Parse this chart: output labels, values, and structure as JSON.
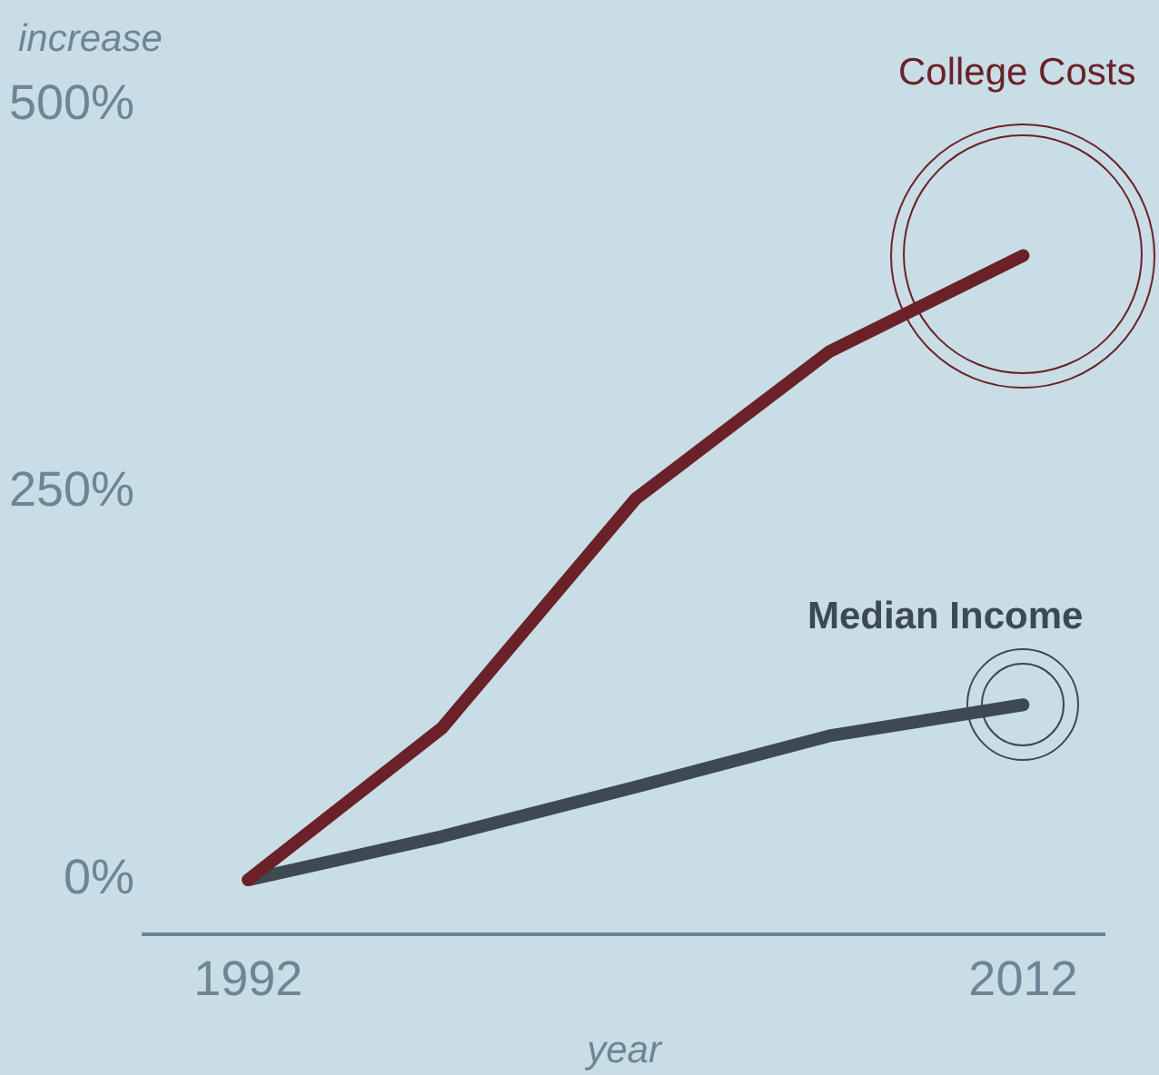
{
  "chart_data": {
    "type": "line",
    "ylabel": "increase",
    "xlabel": "year",
    "xlim": [
      1989.3,
      2014.1
    ],
    "xticks": [
      1992,
      2012
    ],
    "ylim": [
      -35,
      500
    ],
    "yticks": [
      {
        "value": 0,
        "label": "0%"
      },
      {
        "value": 250,
        "label": "250%"
      },
      {
        "value": 500,
        "label": "500%"
      }
    ],
    "grid": false,
    "legend": false,
    "marker": "none",
    "line_style": "solid",
    "series": [
      {
        "name": "College Costs",
        "color": "#6b2128",
        "x": [
          1992,
          1997,
          2002,
          2007,
          2012
        ],
        "values": [
          0,
          98,
          246,
          341,
          403
        ]
      },
      {
        "name": "Median Income",
        "color": "#3d4a52",
        "x": [
          1992,
          1997,
          2002,
          2007,
          2012
        ],
        "values": [
          0,
          28,
          60,
          93,
          113
        ]
      }
    ]
  }
}
